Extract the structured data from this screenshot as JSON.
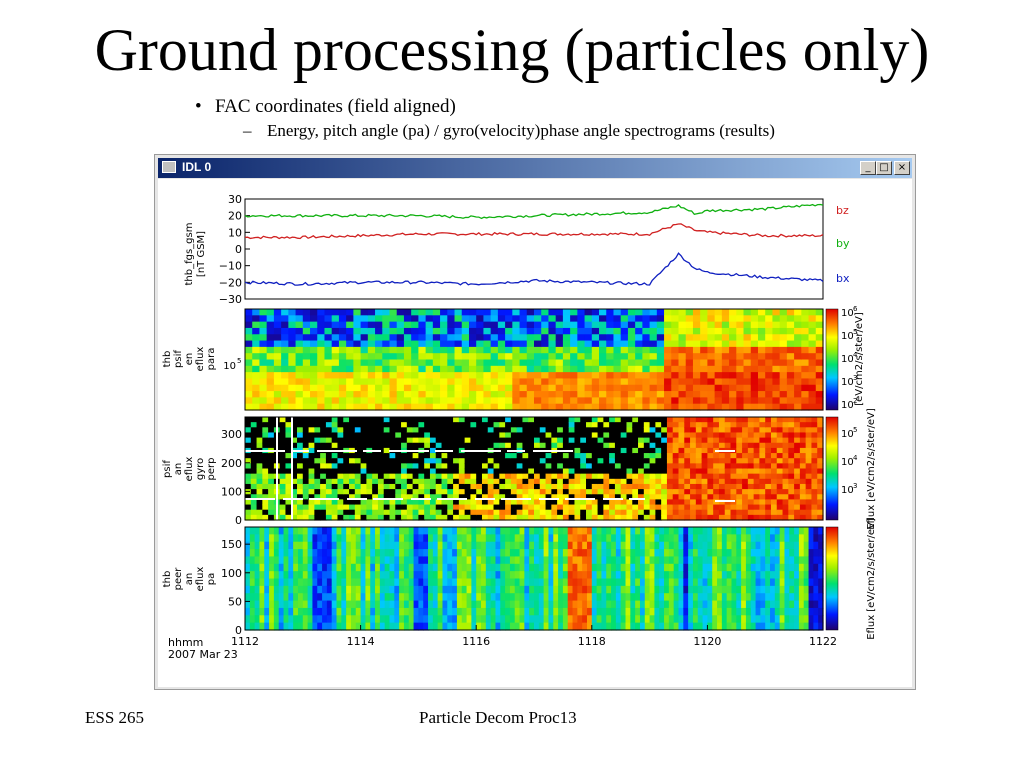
{
  "slide": {
    "title": "Ground processing (particles only)",
    "bullet_1": "FAC coordinates (field aligned)",
    "bullet_2": "Energy, pitch angle (pa) / gyro(velocity)phase angle spectrograms (results)",
    "footer_left": "ESS 265",
    "footer_center": "Particle Decom Proc13"
  },
  "window": {
    "title": "IDL 0",
    "buttons": {
      "minimize": "_",
      "maximize": "□",
      "close": "×"
    }
  },
  "panels": {
    "fgs": {
      "ylabel_1": "thb_fgs_gsm",
      "ylabel_2": "[nT GSM]",
      "yticks": [
        "30",
        "20",
        "10",
        "0",
        "−10",
        "−20",
        "−30"
      ],
      "legend": [
        {
          "name": "bz",
          "color": "#d02020"
        },
        {
          "name": "by",
          "color": "#10b010"
        },
        {
          "name": "bx",
          "color": "#1020c0"
        }
      ]
    },
    "en": {
      "ylabel_lines": [
        "thb",
        "psif",
        "en",
        "eflux",
        "para"
      ],
      "ytick": "10",
      "ytick_exp": "5",
      "cbar_ticks": [
        {
          "base": "10",
          "exp": "6"
        },
        {
          "base": "10",
          "exp": "5"
        },
        {
          "base": "10",
          "exp": "4"
        },
        {
          "base": "10",
          "exp": "3"
        },
        {
          "base": "10",
          "exp": "2"
        }
      ],
      "cbar_label": "[eV/cm2/s/ster/eV]"
    },
    "gyro": {
      "ylabel_lines": [
        "psif",
        "an",
        "eflux",
        "gyro",
        "perp"
      ],
      "yticks": [
        "300",
        "200",
        "100",
        "0"
      ],
      "cbar_ticks": [
        {
          "base": "10",
          "exp": "5"
        },
        {
          "base": "10",
          "exp": "4"
        },
        {
          "base": "10",
          "exp": "3"
        }
      ],
      "cbar_label": "Eflux [eV/cm2/s/ster/eV]"
    },
    "pa": {
      "ylabel_lines": [
        "thb",
        "peer",
        "an",
        "eflux",
        "pa"
      ],
      "yticks": [
        "150",
        "100",
        "50",
        "0"
      ],
      "cbar_label": "Eflux [eV/cm2/s/ster/eV]"
    }
  },
  "xaxis": {
    "unit": "hhmm",
    "date": "2007 Mar 23",
    "ticks": [
      "1112",
      "1114",
      "1116",
      "1118",
      "1120",
      "1122"
    ]
  },
  "chart_data": [
    {
      "type": "line",
      "ylabel": "thb_fgs_gsm [nT GSM]",
      "ylim": [
        -30,
        30
      ],
      "x": [
        1112,
        1113,
        1114,
        1115,
        1116,
        1117,
        1118,
        1119,
        1119.5,
        1119.8,
        1120,
        1121,
        1122
      ],
      "series": [
        {
          "name": "bz",
          "values": [
            7,
            7,
            8,
            9,
            9,
            9,
            9,
            9,
            15,
            11,
            10,
            8,
            8
          ]
        },
        {
          "name": "by",
          "values": [
            20,
            20,
            20,
            20,
            19,
            20,
            21,
            22,
            26,
            21,
            23,
            24,
            27
          ]
        },
        {
          "name": "bx",
          "values": [
            -20,
            -21,
            -20,
            -20,
            -21,
            -19,
            -20,
            -21,
            -3,
            -12,
            -14,
            -17,
            -19
          ]
        }
      ]
    },
    {
      "type": "heatmap",
      "ylabel": "thb psif en eflux para",
      "zlabel": "[eV/cm2/s/ster/eV]",
      "zscale": "log",
      "zlim": [
        "10^2",
        "10^6"
      ]
    },
    {
      "type": "heatmap",
      "ylabel": "psif an eflux gyro perp",
      "ylim": [
        0,
        360
      ],
      "zlabel": "Eflux [eV/cm2/s/ster/eV]",
      "zscale": "log"
    },
    {
      "type": "heatmap",
      "ylabel": "thb peer an eflux pa",
      "ylim": [
        0,
        180
      ],
      "zlabel": "Eflux [eV/cm2/s/ster/eV]",
      "zscale": "log"
    }
  ]
}
